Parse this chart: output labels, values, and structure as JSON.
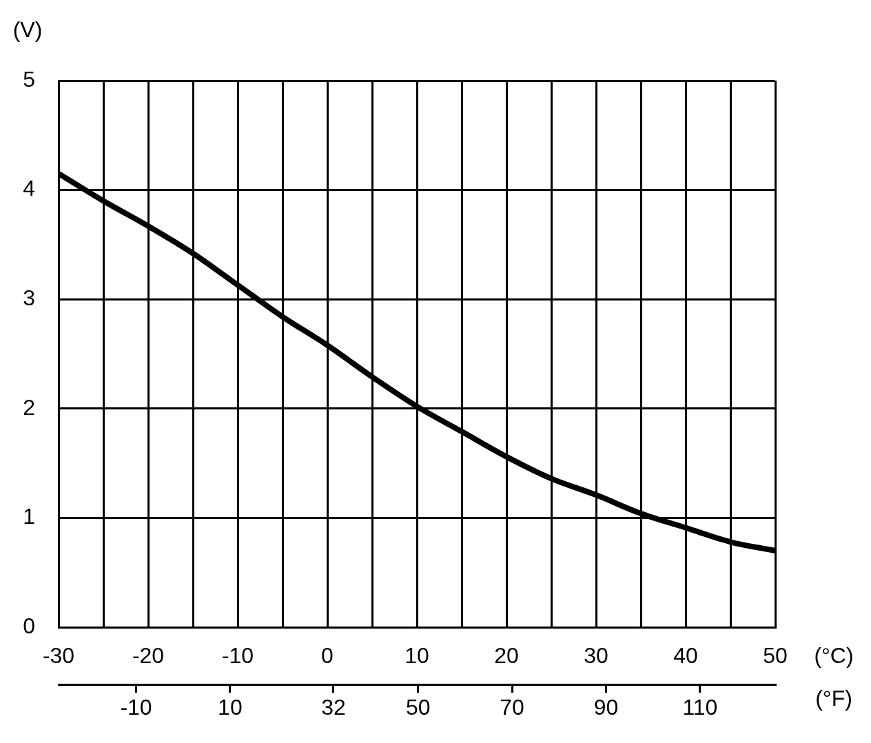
{
  "chart_data": {
    "type": "line",
    "xlabel": "(°C)",
    "ylabel": "(V)",
    "x2label": "(°F)",
    "x": [
      -30,
      -25,
      -20,
      -15,
      -10,
      -5,
      0,
      5,
      10,
      15,
      20,
      25,
      30,
      35,
      40,
      45,
      50
    ],
    "values": [
      4.15,
      3.9,
      3.67,
      3.42,
      3.13,
      2.84,
      2.58,
      2.29,
      2.02,
      1.79,
      1.56,
      1.36,
      1.21,
      1.04,
      0.91,
      0.78,
      0.7
    ],
    "color": "#000000",
    "marker": "none",
    "xlim": [
      -30,
      50
    ],
    "xticks": [
      -30,
      {
        "value": -25,
        "label": null
      },
      -20,
      {
        "value": -15,
        "label": null
      },
      -10,
      {
        "value": -5,
        "label": null
      },
      0,
      {
        "value": 5,
        "label": null
      },
      10,
      {
        "value": 15,
        "label": null
      },
      20,
      {
        "value": 25,
        "label": null
      },
      30,
      {
        "value": 35,
        "label": null
      },
      40,
      {
        "value": 45,
        "label": null
      },
      50
    ],
    "ylim": [
      0,
      5
    ],
    "yticks": [
      0,
      1,
      2,
      3,
      4,
      5
    ],
    "x2lim": [
      -26.5,
      126
    ],
    "x2ticks": [
      -10,
      10,
      32,
      50,
      70,
      90,
      110
    ],
    "grid": true
  }
}
